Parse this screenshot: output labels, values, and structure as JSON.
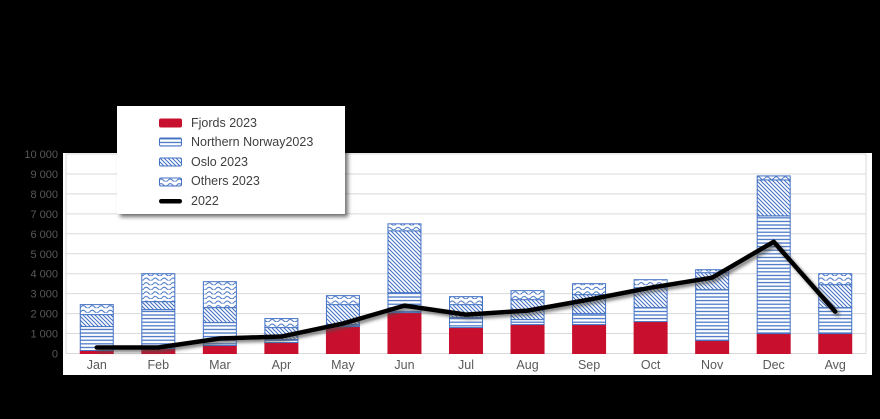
{
  "page": {
    "background_color": "#000000",
    "title": ""
  },
  "chart_data": {
    "type": "bar",
    "subtype": "stacked-bars-with-line-overlay",
    "title": "",
    "categories": [
      "Jan",
      "Feb",
      "Mar",
      "Apr",
      "May",
      "Jun",
      "Jul",
      "Aug",
      "Sep",
      "Oct",
      "Nov",
      "Dec",
      "Avg"
    ],
    "series": [
      {
        "name": "Fjords 2023",
        "kind": "bar",
        "pattern": "solid",
        "color": "#C8102E",
        "values": [
          150,
          250,
          400,
          550,
          1350,
          2050,
          1300,
          1450,
          1450,
          1600,
          650,
          1000,
          1000
        ]
      },
      {
        "name": "Northern Norway2023",
        "kind": "bar",
        "pattern": "horizontal-lines",
        "color": "#4472C4",
        "values": [
          1200,
          1950,
          1150,
          150,
          100,
          1000,
          500,
          250,
          550,
          700,
          2550,
          5900,
          1300
        ]
      },
      {
        "name": "Oslo 2023",
        "kind": "bar",
        "pattern": "diagonal-hatch",
        "color": "#4472C4",
        "values": [
          600,
          400,
          750,
          600,
          1000,
          3100,
          650,
          1000,
          950,
          1000,
          850,
          1800,
          1150
        ]
      },
      {
        "name": "Others 2023",
        "kind": "bar",
        "pattern": "wavy-lines",
        "color": "#4472C4",
        "values": [
          500,
          1400,
          1300,
          450,
          450,
          350,
          400,
          450,
          550,
          400,
          150,
          200,
          550
        ]
      },
      {
        "name": "2022",
        "kind": "line",
        "pattern": "line",
        "color": "#000000",
        "values": [
          300,
          300,
          750,
          850,
          1500,
          2400,
          1950,
          2150,
          2700,
          3300,
          3800,
          5600,
          2100
        ]
      }
    ],
    "ylim": [
      0,
      10000
    ],
    "ytick_step": 1000,
    "ytick_labels": [
      "0",
      "1 000",
      "2 000",
      "3 000",
      "4 000",
      "5 000",
      "6 000",
      "7 000",
      "8 000",
      "9 000",
      "10 000"
    ],
    "xlabel": "",
    "ylabel": "",
    "grid": true,
    "legend_position": "floating-upper-left",
    "colors": {
      "plot_background": "#FFFFFF",
      "gridline": "#D9D9D9",
      "axis_text": "#595959",
      "bar_border": "#4472C4",
      "line_shadow": "#4D4D4D"
    }
  }
}
